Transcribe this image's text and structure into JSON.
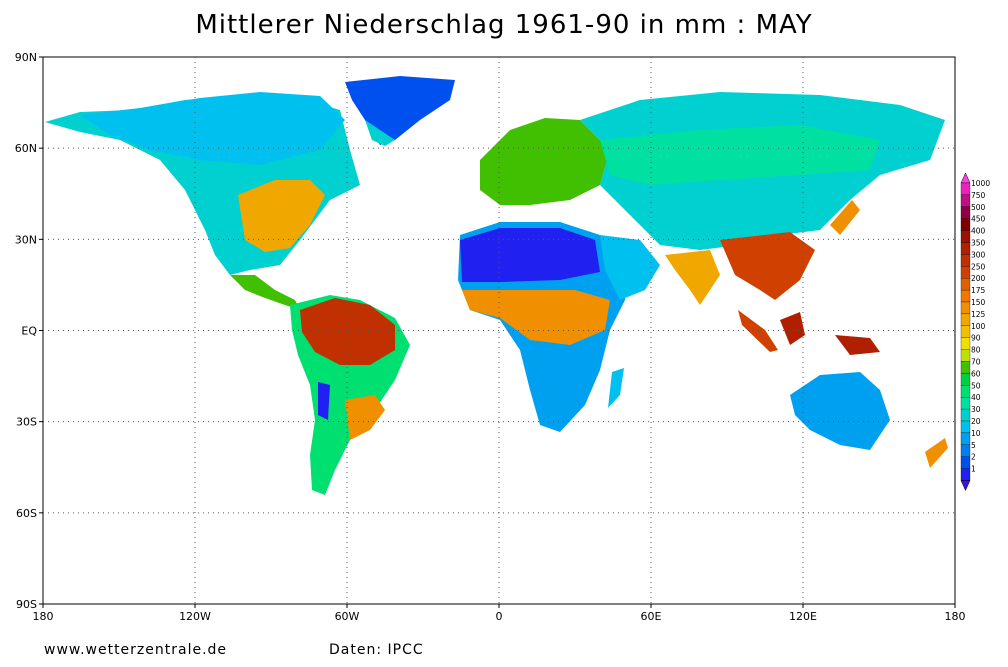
{
  "title": "Mittlerer Niederschlag 1961-90 in mm : MAY",
  "footer": {
    "website": "www.wetterzentrale.de",
    "source": "Daten: IPCC"
  },
  "axes": {
    "lat_ticks": [
      {
        "value": 90,
        "label": "90N"
      },
      {
        "value": 60,
        "label": "60N"
      },
      {
        "value": 30,
        "label": "30N"
      },
      {
        "value": 0,
        "label": "EQ"
      },
      {
        "value": -30,
        "label": "30S"
      },
      {
        "value": -60,
        "label": "60S"
      },
      {
        "value": -90,
        "label": "90S"
      }
    ],
    "lon_ticks": [
      {
        "value": -180,
        "label": "180"
      },
      {
        "value": -120,
        "label": "120W"
      },
      {
        "value": -60,
        "label": "60W"
      },
      {
        "value": 0,
        "label": "0"
      },
      {
        "value": 60,
        "label": "60E"
      },
      {
        "value": 120,
        "label": "120E"
      },
      {
        "value": 180,
        "label": "180"
      }
    ]
  },
  "colorbar": {
    "levels": [
      {
        "label": "1000",
        "color": "#f020c0"
      },
      {
        "label": "750",
        "color": "#c01080"
      },
      {
        "label": "500",
        "color": "#900040"
      },
      {
        "label": "450",
        "color": "#800000"
      },
      {
        "label": "400",
        "color": "#a01000"
      },
      {
        "label": "350",
        "color": "#b02000"
      },
      {
        "label": "300",
        "color": "#c03000"
      },
      {
        "label": "250",
        "color": "#d04000"
      },
      {
        "label": "200",
        "color": "#e06000"
      },
      {
        "label": "175",
        "color": "#f07800"
      },
      {
        "label": "150",
        "color": "#f09000"
      },
      {
        "label": "125",
        "color": "#f0a800"
      },
      {
        "label": "100",
        "color": "#f0c000"
      },
      {
        "label": "90",
        "color": "#f0e000"
      },
      {
        "label": "80",
        "color": "#c0e000"
      },
      {
        "label": "70",
        "color": "#40c000"
      },
      {
        "label": "60",
        "color": "#00d040"
      },
      {
        "label": "50",
        "color": "#00e070"
      },
      {
        "label": "40",
        "color": "#00e0a0"
      },
      {
        "label": "30",
        "color": "#00d0d0"
      },
      {
        "label": "20",
        "color": "#00c0f0"
      },
      {
        "label": "10",
        "color": "#00a0f0"
      },
      {
        "label": "5",
        "color": "#0080f0"
      },
      {
        "label": "2",
        "color": "#0050f0"
      },
      {
        "label": "1",
        "color": "#2020f0"
      }
    ],
    "top_color": "#ff40e0",
    "bottom_color": "#4010e0"
  },
  "regions": [
    {
      "name": "North America north",
      "color": "#00c0f0"
    },
    {
      "name": "Eastern United States",
      "color": "#f0a800"
    },
    {
      "name": "Amazon",
      "color": "#c03000"
    },
    {
      "name": "Sahara",
      "color": "#2020f0"
    },
    {
      "name": "Central Africa",
      "color": "#f09000"
    },
    {
      "name": "Europe",
      "color": "#40c000"
    },
    {
      "name": "Siberia",
      "color": "#00e0a0"
    },
    {
      "name": "Southeast Asia",
      "color": "#d04000"
    },
    {
      "name": "Australia",
      "color": "#00a0f0"
    },
    {
      "name": "Greenland",
      "color": "#0050f0"
    }
  ]
}
